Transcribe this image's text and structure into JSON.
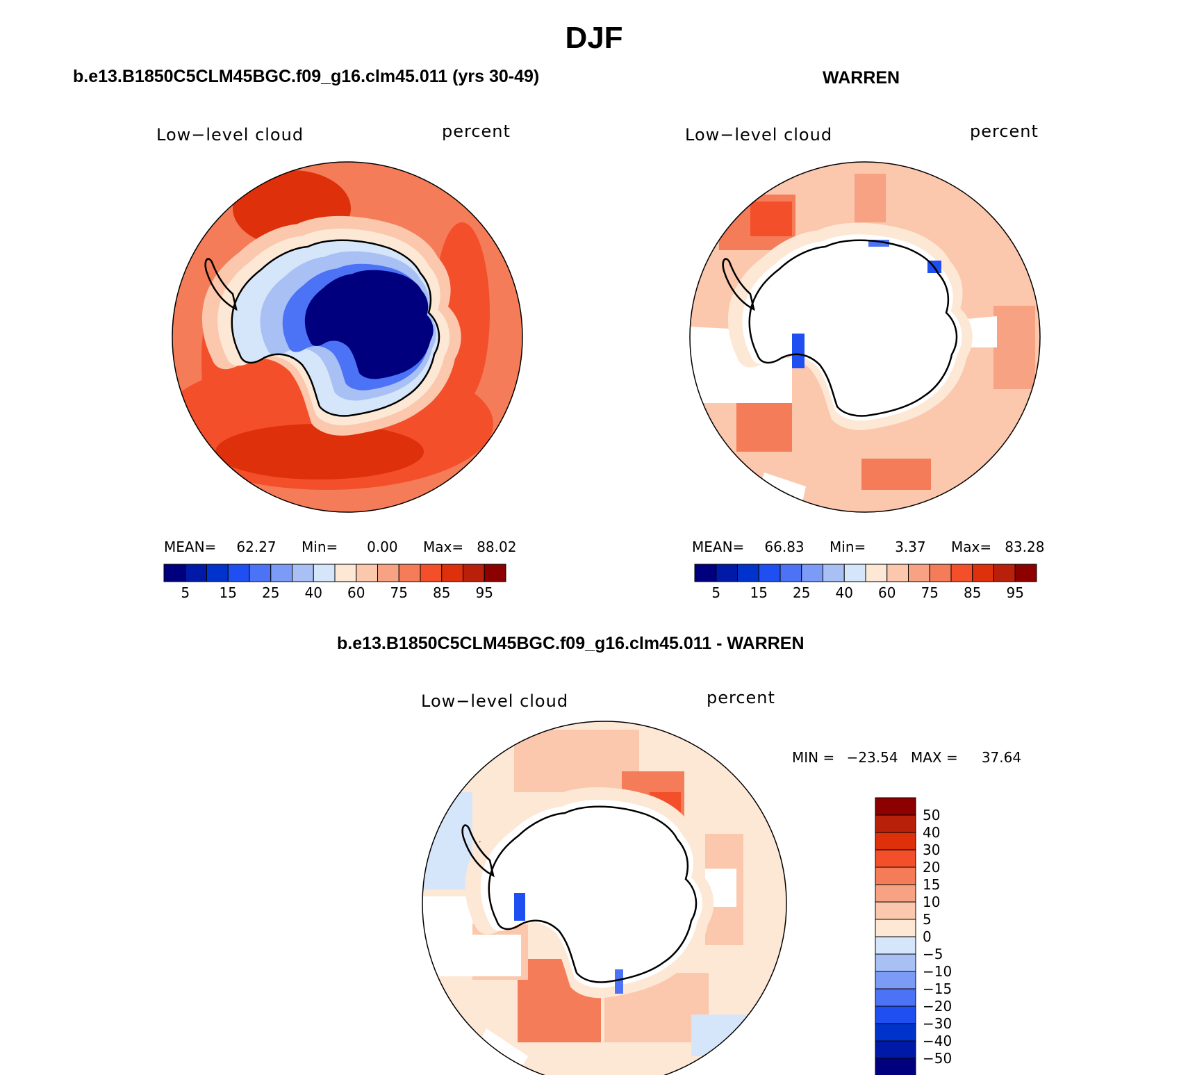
{
  "title": "DJF",
  "panels": {
    "model": {
      "title": "b.e13.B1850C5CLM45BGC.f09_g16.clm45.011 (yrs 30-49)",
      "left_label": "Low−level cloud",
      "right_label": "percent",
      "mean_label": "MEAN=",
      "mean": "62.27",
      "min_label": "Min=",
      "min": "0.00",
      "max_label": "Max=",
      "max": "88.02"
    },
    "obs": {
      "title": "WARREN",
      "left_label": "Low−level cloud",
      "right_label": "percent",
      "mean_label": "MEAN=",
      "mean": "66.83",
      "min_label": "Min=",
      "min": "3.37",
      "max_label": "Max=",
      "max": "83.28"
    },
    "diff": {
      "title": "b.e13.B1850C5CLM45BGC.f09_g16.clm45.011 - WARREN",
      "left_label": "Low−level cloud",
      "right_label": "percent",
      "min_label": "MIN =",
      "min": "−23.54",
      "max_label": "MAX =",
      "max": "37.64"
    }
  },
  "colorbar_abs": {
    "colors": [
      "#00007f",
      "#0019a6",
      "#0033cc",
      "#1f4ff0",
      "#4c73f5",
      "#7b9bf7",
      "#a9c0f5",
      "#d6e6fa",
      "#fde8d6",
      "#fbc7ad",
      "#f7a283",
      "#f57c58",
      "#f24f2a",
      "#de300a",
      "#b8200a",
      "#8c0000"
    ],
    "tick_labels": [
      "5",
      "15",
      "25",
      "40",
      "60",
      "75",
      "85",
      "95"
    ]
  },
  "colorbar_diff": {
    "colors": [
      "#8c0000",
      "#b8200a",
      "#de300a",
      "#f24f2a",
      "#f57c58",
      "#f7a283",
      "#fbc7ad",
      "#fde8d6",
      "#d6e6fa",
      "#a9c0f5",
      "#7b9bf7",
      "#4c73f5",
      "#1f4ff0",
      "#0033cc",
      "#0019a6",
      "#00007f"
    ],
    "tick_labels": [
      "50",
      "40",
      "30",
      "20",
      "15",
      "10",
      "5",
      "0",
      "−5",
      "−10",
      "−15",
      "−20",
      "−30",
      "−40",
      "−50"
    ]
  }
}
